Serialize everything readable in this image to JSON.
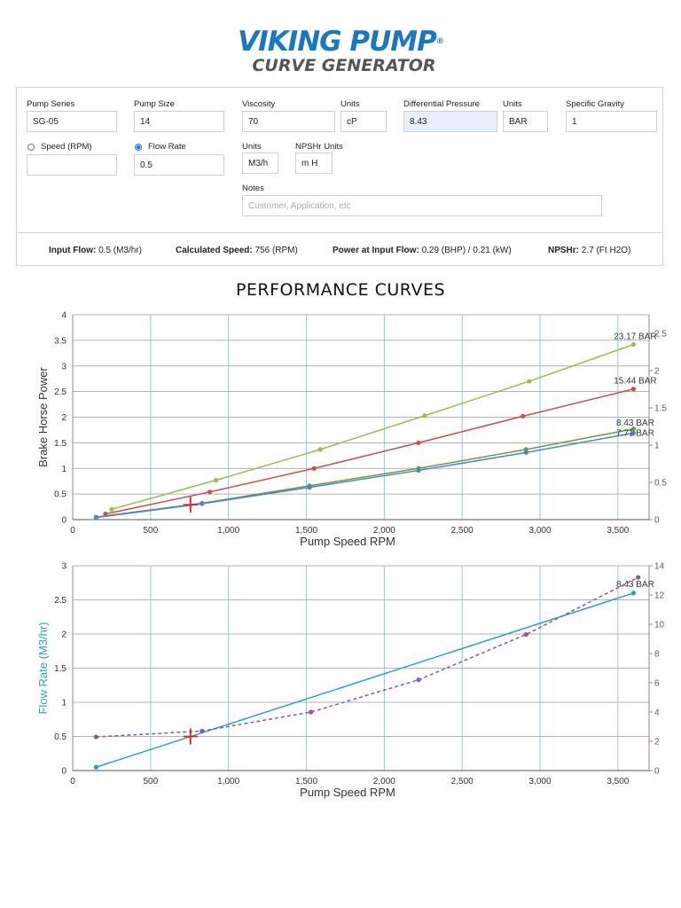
{
  "logo": {
    "line1": "VIKING PUMP",
    "reg": "®",
    "line2": "CURVE GENERATOR"
  },
  "form": {
    "pump_series": {
      "label": "Pump Series",
      "value": "SG-05"
    },
    "pump_size": {
      "label": "Pump Size",
      "value": "14"
    },
    "viscosity": {
      "label": "Viscosity",
      "value": "70"
    },
    "viscosity_units": {
      "label": "Units",
      "value": "cP"
    },
    "diff_pressure": {
      "label": "Differential Pressure",
      "value": "8.43"
    },
    "pressure_units": {
      "label": "Units",
      "value": "BAR"
    },
    "specific_gravity": {
      "label": "Specific Gravity",
      "value": "1"
    },
    "speed": {
      "label": "Speed (RPM)",
      "value": "",
      "selected": false
    },
    "flow_rate": {
      "label": "Flow Rate",
      "value": "0.5",
      "selected": true
    },
    "flow_units": {
      "label": "Units",
      "value": "M3/h"
    },
    "npshr_units": {
      "label": "NPSHr Units",
      "value": "m H"
    },
    "notes": {
      "label": "Notes",
      "placeholder": "Customer, Application, etc"
    }
  },
  "results": {
    "input_flow": {
      "label": "Input Flow:",
      "value": "0.5 (M3/hr)"
    },
    "calc_speed": {
      "label": "Calculated Speed:",
      "value": "756 (RPM)"
    },
    "power": {
      "label": "Power at Input Flow:",
      "value": "0.29 (BHP) / 0.21 (kW)"
    },
    "npshr": {
      "label": "NPSHr:",
      "value": "2.7 (Ft H2O)"
    }
  },
  "performance_title": "PERFORMANCE CURVES",
  "chart_data": [
    {
      "type": "line",
      "xlabel": "Pump Speed RPM",
      "ylabel": "Brake Horse Power",
      "xlim": [
        0,
        3700
      ],
      "ylim": [
        0,
        4
      ],
      "y2lim": [
        0,
        2.75
      ],
      "xticks": [
        0,
        500,
        1000,
        1500,
        2000,
        2500,
        3000,
        3500
      ],
      "xtick_labels": [
        "0",
        "500",
        "1,000",
        "1,500",
        "2,000",
        "2,500",
        "3,000",
        "3,500"
      ],
      "yticks": [
        0,
        0.5,
        1,
        1.5,
        2,
        2.5,
        3,
        3.5,
        4
      ],
      "ytick_labels": [
        "0",
        "0.5",
        "1",
        "1.5",
        "2",
        "2.5",
        "3",
        "3.5",
        "4"
      ],
      "y2ticks": [
        0,
        0.5,
        1,
        1.5,
        2,
        2.5
      ],
      "y2tick_labels": [
        "0",
        "0.5",
        "1",
        "1.5",
        "2",
        "2.5"
      ],
      "grid": true,
      "series": [
        {
          "name": "23.17 BAR",
          "color": "#8fc24a",
          "x": [
            250,
            920,
            1590,
            2260,
            2930,
            3600
          ],
          "y": [
            0.2,
            0.77,
            1.37,
            2.03,
            2.7,
            3.42
          ]
        },
        {
          "name": "15.44 BAR",
          "color": "#cf4c4c",
          "x": [
            210,
            880,
            1550,
            2220,
            2890,
            3600
          ],
          "y": [
            0.11,
            0.54,
            1.0,
            1.5,
            2.02,
            2.55
          ]
        },
        {
          "name": "8.43 BAR",
          "color": "#6e9a3e",
          "x": [
            150,
            830,
            1520,
            2220,
            2910,
            3600
          ],
          "y": [
            0.05,
            0.32,
            0.66,
            1.0,
            1.37,
            1.77
          ]
        },
        {
          "name": "7.71 BAR",
          "color": "#4b86c8",
          "x": [
            150,
            830,
            1520,
            2220,
            2910,
            3600
          ],
          "y": [
            0.04,
            0.31,
            0.63,
            0.96,
            1.31,
            1.69
          ]
        }
      ],
      "operating_point": {
        "x": 756,
        "y": 0.29,
        "color": "#e02020"
      }
    },
    {
      "type": "line",
      "xlabel": "Pump Speed RPM",
      "ylabel": "Flow Rate (M3/hr)",
      "xlim": [
        0,
        3700
      ],
      "ylim": [
        0,
        3
      ],
      "y2lim": [
        0,
        14
      ],
      "xticks": [
        0,
        500,
        1000,
        1500,
        2000,
        2500,
        3000,
        3500
      ],
      "xtick_labels": [
        "0",
        "500",
        "1,000",
        "1,500",
        "2,000",
        "2,500",
        "3,000",
        "3,500"
      ],
      "yticks": [
        0,
        0.5,
        1,
        1.5,
        2,
        2.5,
        3
      ],
      "ytick_labels": [
        "0",
        "0.5",
        "1",
        "1.5",
        "2",
        "2.5",
        "3"
      ],
      "y2ticks": [
        0,
        2,
        4,
        6,
        8,
        10,
        12,
        14
      ],
      "y2tick_labels": [
        "0",
        "2",
        "4",
        "6",
        "8",
        "10",
        "12",
        "14"
      ],
      "grid": true,
      "series": [
        {
          "name": "8.43 BAR",
          "color": "#2ba0bf",
          "axis": "left",
          "x": [
            150,
            3600
          ],
          "y": [
            0.05,
            2.6
          ]
        },
        {
          "name": "",
          "color": "#8a5a9a",
          "axis": "right",
          "dashed": true,
          "x": [
            150,
            830,
            1530,
            2220,
            2910,
            3630
          ],
          "y": [
            2.3,
            2.7,
            4.0,
            6.2,
            9.3,
            13.2
          ]
        }
      ],
      "operating_point": {
        "x": 756,
        "y": 0.5,
        "color": "#e02020"
      }
    }
  ]
}
